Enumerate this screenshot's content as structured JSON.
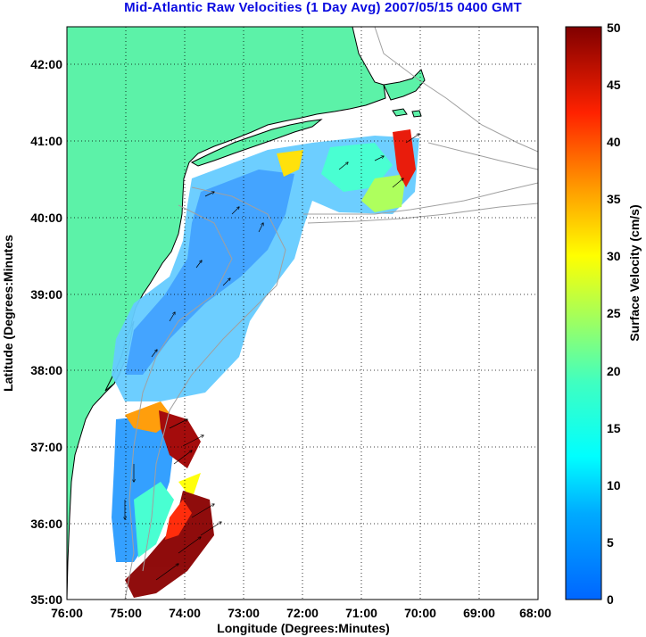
{
  "title": "Mid-Atlantic Raw Velocities (1 Day Avg) 2007/05/15 0400 GMT",
  "map": {
    "xlabel": "Longitude (Degrees:Minutes)",
    "ylabel": "Latitude (Degrees:Minutes",
    "x_ticks": [
      "76:00",
      "75:00",
      "74:00",
      "73:00",
      "72:00",
      "71:00",
      "70:00",
      "69:00",
      "68:00"
    ],
    "y_ticks": [
      "42:00",
      "41:00",
      "40:00",
      "39:00",
      "38:00",
      "37:00",
      "36:00",
      "35:00"
    ],
    "lon_range": [
      -76,
      -68
    ],
    "lat_range": [
      35,
      42.5
    ],
    "grid": true,
    "land_color": "#5cf2a8",
    "coast_color": "#000000",
    "bathymetry_color": "#a0a0a0"
  },
  "colorbar": {
    "label": "Surface Velocity (cm/s)",
    "ticks": [
      "0",
      "5",
      "10",
      "15",
      "20",
      "25",
      "30",
      "35",
      "40",
      "45",
      "50"
    ],
    "min": 0,
    "max": 50,
    "colormap": "jet"
  }
}
